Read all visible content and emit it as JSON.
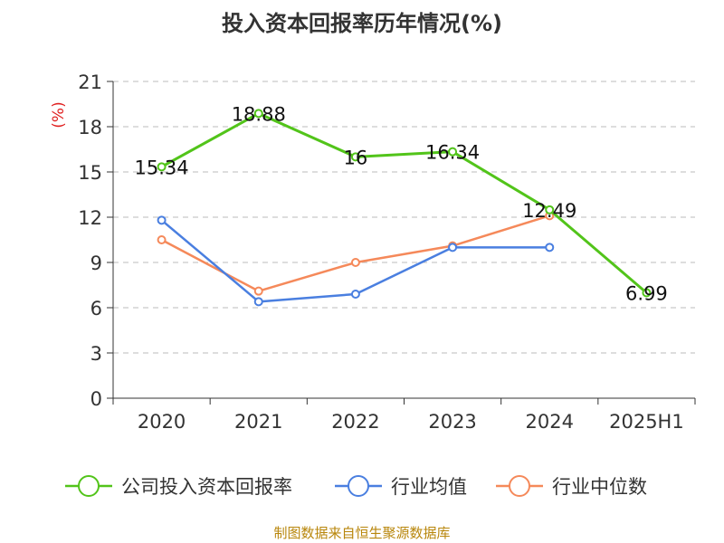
{
  "chart_data": {
    "type": "line",
    "title": "投入资本回报率历年情况(%)",
    "ylabel": "(%)",
    "xlabel": "",
    "categories": [
      "2020",
      "2021",
      "2022",
      "2023",
      "2024",
      "2025H1"
    ],
    "ylim": [
      0,
      21
    ],
    "yticks": [
      0,
      3,
      6,
      9,
      12,
      15,
      18,
      21
    ],
    "grid": true,
    "legend_position": "bottom",
    "series": [
      {
        "name": "公司投入资本回报率",
        "color": "#52c41a",
        "values": [
          15.34,
          18.88,
          16,
          16.34,
          12.49,
          6.99
        ],
        "labels": [
          "15.34",
          "18.88",
          "16",
          "16.34",
          "12.49",
          "6.99"
        ]
      },
      {
        "name": "行业均值",
        "color": "#4a7fe0",
        "values": [
          11.8,
          6.4,
          6.9,
          10.0,
          10.0,
          null
        ]
      },
      {
        "name": "行业中位数",
        "color": "#f5895a",
        "values": [
          10.5,
          7.1,
          9.0,
          10.1,
          12.1,
          null
        ]
      }
    ]
  },
  "footer": {
    "source": "制图数据来自恒生聚源数据库"
  }
}
